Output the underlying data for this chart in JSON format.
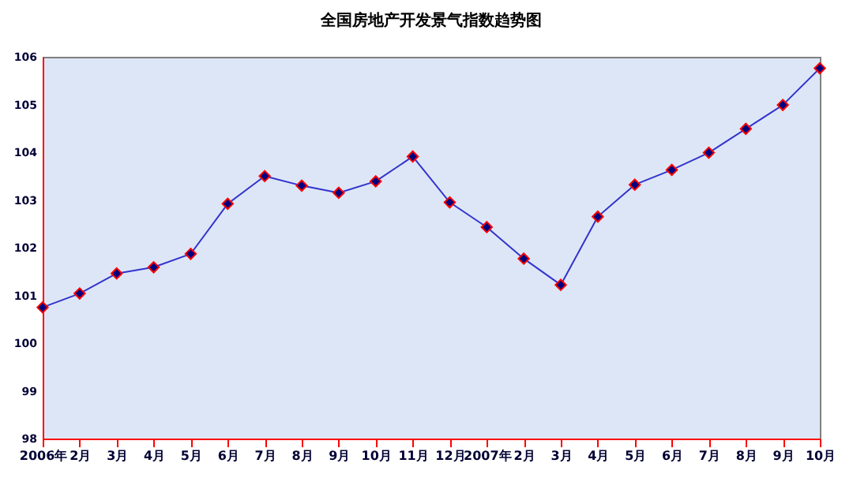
{
  "chart_data": {
    "type": "line",
    "title": "全国房地产开发景气指数趋势图",
    "categories": [
      "2006年",
      "2月",
      "3月",
      "4月",
      "5月",
      "6月",
      "7月",
      "8月",
      "9月",
      "10月",
      "11月",
      "12月",
      "2007年",
      "2月",
      "3月",
      "4月",
      "5月",
      "6月",
      "7月",
      "8月",
      "9月",
      "10月"
    ],
    "series": [
      {
        "color": "#3333cc",
        "values": [
          100.75,
          101.04,
          101.46,
          101.59,
          101.87,
          102.92,
          103.5,
          103.3,
          103.15,
          103.39,
          103.91,
          102.95,
          102.43,
          101.77,
          101.22,
          102.65,
          103.32,
          103.63,
          103.99,
          104.49,
          104.99,
          105.76
        ]
      }
    ],
    "ylim": [
      98,
      106
    ],
    "yticks": [
      98,
      99,
      100,
      101,
      102,
      103,
      104,
      105,
      106
    ],
    "grid": false,
    "legend": false,
    "marker": "diamond",
    "line_style": "solid"
  }
}
